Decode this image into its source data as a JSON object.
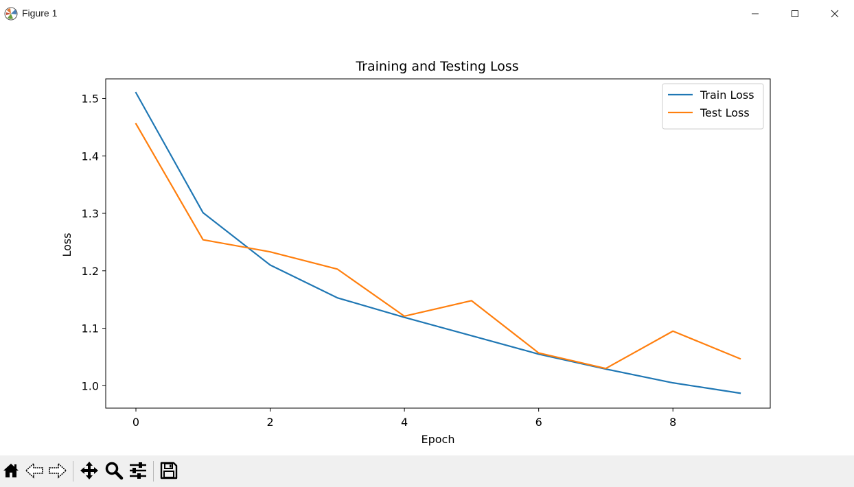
{
  "window": {
    "title": "Figure 1",
    "controls": {
      "minimize_icon": "minimize-icon",
      "maximize_icon": "maximize-icon",
      "close_icon": "close-icon"
    }
  },
  "chart_data": {
    "type": "line",
    "title": "Training and Testing Loss",
    "xlabel": "Epoch",
    "ylabel": "Loss",
    "xlim": [
      -0.45,
      9.45
    ],
    "ylim": [
      0.961,
      1.534
    ],
    "xticks": [
      0,
      2,
      4,
      6,
      8
    ],
    "yticks": [
      1.0,
      1.1,
      1.2,
      1.3,
      1.4,
      1.5
    ],
    "xtick_labels": [
      "0",
      "2",
      "4",
      "6",
      "8"
    ],
    "ytick_labels": [
      "1.0",
      "1.1",
      "1.2",
      "1.3",
      "1.4",
      "1.5"
    ],
    "grid": false,
    "legend_position": "top-right",
    "x": [
      0,
      1,
      2,
      3,
      4,
      5,
      6,
      7,
      8,
      9
    ],
    "series": [
      {
        "name": "Train Loss",
        "color": "#1f77b4",
        "values": [
          1.51,
          1.301,
          1.21,
          1.153,
          1.119,
          1.087,
          1.055,
          1.029,
          1.005,
          0.987
        ]
      },
      {
        "name": "Test Loss",
        "color": "#ff7f0e",
        "values": [
          1.456,
          1.254,
          1.233,
          1.203,
          1.121,
          1.148,
          1.057,
          1.03,
          1.095,
          1.047
        ]
      }
    ]
  },
  "toolbar": {
    "buttons": [
      {
        "name": "home-button",
        "icon": "home-icon"
      },
      {
        "name": "back-button",
        "icon": "back-arrow-icon"
      },
      {
        "name": "forward-button",
        "icon": "forward-arrow-icon"
      },
      {
        "name": "pan-button",
        "icon": "move-icon"
      },
      {
        "name": "zoom-button",
        "icon": "magnifier-icon"
      },
      {
        "name": "configure-subplots-button",
        "icon": "sliders-icon"
      },
      {
        "name": "save-button",
        "icon": "save-icon"
      }
    ]
  }
}
